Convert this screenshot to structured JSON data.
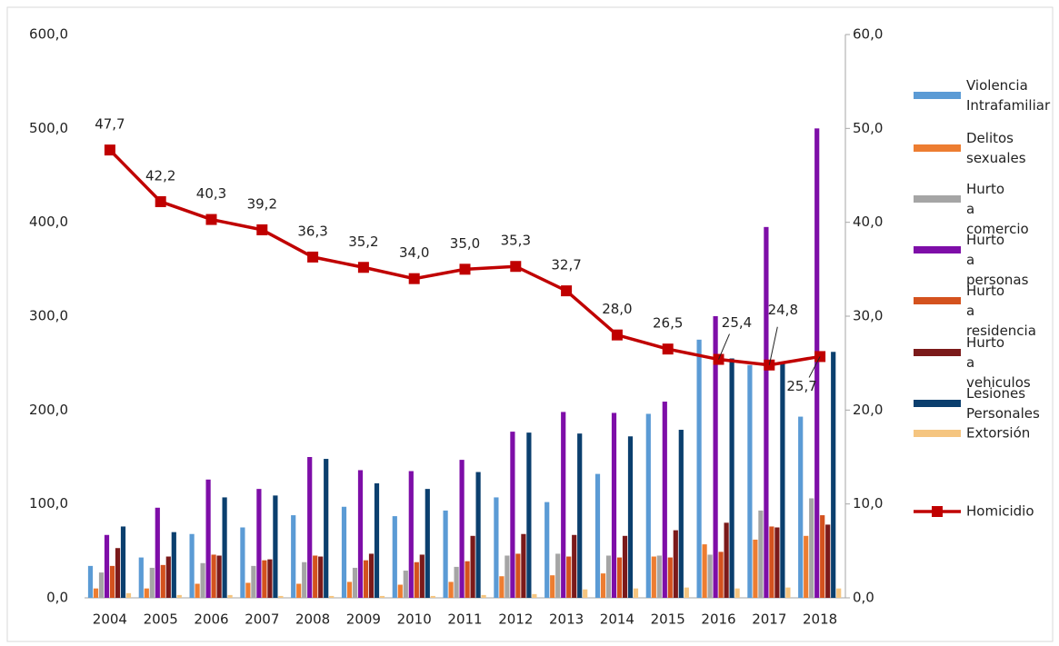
{
  "chart_data": {
    "type": "bar",
    "categories": [
      "2004",
      "2005",
      "2006",
      "2007",
      "2008",
      "2009",
      "2010",
      "2011",
      "2012",
      "2013",
      "2014",
      "2015",
      "2016",
      "2017",
      "2018"
    ],
    "series": [
      {
        "name": "Violencia Intrafamiliar",
        "color": "#5b9bd5",
        "values": [
          34,
          43,
          68,
          75,
          88,
          97,
          87,
          93,
          107,
          102,
          132,
          196,
          275,
          248,
          193
        ]
      },
      {
        "name": "Delitos sexuales",
        "color": "#ed7d31",
        "values": [
          10,
          10,
          15,
          16,
          15,
          17,
          14,
          17,
          23,
          24,
          26,
          44,
          57,
          62,
          66
        ]
      },
      {
        "name": "Hurto a comercio",
        "color": "#a5a5a5",
        "values": [
          27,
          32,
          37,
          34,
          38,
          32,
          29,
          33,
          45,
          47,
          45,
          45,
          46,
          93,
          106
        ]
      },
      {
        "name": "Hurto a personas",
        "color": "#7e0ea8",
        "values": [
          67,
          96,
          126,
          116,
          150,
          136,
          135,
          147,
          177,
          198,
          197,
          209,
          300,
          395,
          500
        ]
      },
      {
        "name": "Hurto a residencia",
        "color": "#d4521e",
        "values": [
          34,
          35,
          46,
          40,
          45,
          40,
          38,
          39,
          47,
          44,
          43,
          43,
          49,
          76,
          88
        ]
      },
      {
        "name": "Hurto a vehiculos",
        "color": "#7b1a1a",
        "values": [
          53,
          44,
          45,
          41,
          44,
          47,
          46,
          66,
          68,
          67,
          66,
          72,
          80,
          75,
          78
        ]
      },
      {
        "name": "Lesiones Personales",
        "color": "#0b3f6e",
        "values": [
          76,
          70,
          107,
          109,
          148,
          122,
          116,
          134,
          176,
          175,
          172,
          179,
          255,
          250,
          262
        ]
      },
      {
        "name": "Extorsión",
        "color": "#f5c580",
        "values": [
          5,
          3,
          3,
          2,
          2,
          2,
          2,
          3,
          4,
          9,
          10,
          11,
          10,
          11,
          10
        ]
      },
      {
        "name": "Homicidio",
        "color": "#c00000",
        "type": "line",
        "axis": "y2",
        "values": [
          47.7,
          42.2,
          40.3,
          39.2,
          36.3,
          35.2,
          34.0,
          35.0,
          35.3,
          32.7,
          28.0,
          26.5,
          25.4,
          24.8,
          25.7
        ],
        "value_labels": [
          "47,7",
          "42,2",
          "40,3",
          "39,2",
          "36,3",
          "35,2",
          "34,0",
          "35,0",
          "35,3",
          "32,7",
          "28,0",
          "26,5",
          "25,4",
          "24,8",
          "25,7"
        ]
      }
    ],
    "ylim": [
      0,
      600
    ],
    "yticks": [
      {
        "value": 0,
        "label": "0,0"
      },
      {
        "value": 100,
        "label": "100,0"
      },
      {
        "value": 200,
        "label": "200,0"
      },
      {
        "value": 300,
        "label": "300,0"
      },
      {
        "value": 400,
        "label": "400,0"
      },
      {
        "value": 500,
        "label": "500,0"
      },
      {
        "value": 600,
        "label": "600,0"
      }
    ],
    "y2lim": [
      0,
      60
    ],
    "y2ticks": [
      {
        "value": 0,
        "label": "0,0"
      },
      {
        "value": 10,
        "label": "10,0"
      },
      {
        "value": 20,
        "label": "20,0"
      },
      {
        "value": 30,
        "label": "30,0"
      },
      {
        "value": 40,
        "label": "40,0"
      },
      {
        "value": 50,
        "label": "50,0"
      },
      {
        "value": 60,
        "label": "60,0"
      }
    ],
    "legend": "right"
  }
}
